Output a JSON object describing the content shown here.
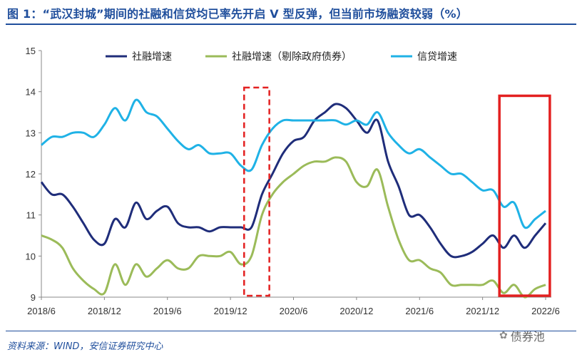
{
  "header": {
    "title": "图 1：“武汉封城”期间的社融和信贷均已率先开启 V 型反弹，但当前市场融资较弱（%）"
  },
  "footer": {
    "source": "资料来源：WIND，安信证券研究中心",
    "watermark": "债券池"
  },
  "colors": {
    "title": "#1f4e9c",
    "social": "#1f2d7a",
    "social_ex_gov": "#9bbb59",
    "credit": "#1fb2e6",
    "highlight_red": "#e32020"
  },
  "chart_data": {
    "type": "line",
    "xlabel": "",
    "ylabel": "",
    "ylim": [
      9,
      15
    ],
    "yticks": [
      "9",
      "10",
      "11",
      "12",
      "13",
      "14",
      "15"
    ],
    "xticks": [
      {
        "label": "2018/6",
        "i": 0
      },
      {
        "label": "2018/12",
        "i": 6
      },
      {
        "label": "2019/6",
        "i": 12
      },
      {
        "label": "2019/12",
        "i": 18
      },
      {
        "label": "2020/6",
        "i": 24
      },
      {
        "label": "2020/12",
        "i": 30
      },
      {
        "label": "2021/6",
        "i": 36
      },
      {
        "label": "2021/12",
        "i": 42
      },
      {
        "label": "2022/6",
        "i": 48
      }
    ],
    "legend": [
      "社融增速",
      "社融增速（剔除政府债券）",
      "信贷增速"
    ],
    "legend_position": "top",
    "x": [
      "2018/6",
      "2018/7",
      "2018/8",
      "2018/9",
      "2018/10",
      "2018/11",
      "2018/12",
      "2019/1",
      "2019/2",
      "2019/3",
      "2019/4",
      "2019/5",
      "2019/6",
      "2019/7",
      "2019/8",
      "2019/9",
      "2019/10",
      "2019/11",
      "2019/12",
      "2020/1",
      "2020/2",
      "2020/3",
      "2020/4",
      "2020/5",
      "2020/6",
      "2020/7",
      "2020/8",
      "2020/9",
      "2020/10",
      "2020/11",
      "2020/12",
      "2021/1",
      "2021/2",
      "2021/3",
      "2021/4",
      "2021/5",
      "2021/6",
      "2021/7",
      "2021/8",
      "2021/9",
      "2021/10",
      "2021/11",
      "2021/12",
      "2022/1",
      "2022/2",
      "2022/3",
      "2022/4",
      "2022/5",
      "2022/6"
    ],
    "series": [
      {
        "name": "社融增速",
        "values": [
          11.8,
          11.5,
          11.5,
          11.2,
          10.8,
          10.4,
          10.3,
          10.9,
          10.7,
          11.3,
          10.9,
          11.1,
          11.2,
          10.8,
          10.7,
          10.7,
          10.6,
          10.7,
          10.7,
          10.7,
          10.7,
          11.5,
          12.0,
          12.5,
          12.8,
          12.9,
          13.3,
          13.5,
          13.7,
          13.6,
          13.3,
          13.0,
          13.3,
          12.3,
          11.7,
          11.0,
          11.0,
          10.7,
          10.3,
          10.0,
          10.0,
          10.1,
          10.3,
          10.5,
          10.2,
          10.5,
          10.2,
          10.5,
          10.8
        ]
      },
      {
        "name": "社融增速（剔除政府债券）",
        "values": [
          10.5,
          10.4,
          10.2,
          9.7,
          9.4,
          9.2,
          9.1,
          9.8,
          9.3,
          9.8,
          9.5,
          9.7,
          9.9,
          9.7,
          9.7,
          10.0,
          10.0,
          10.0,
          10.1,
          9.8,
          10.0,
          11.0,
          11.5,
          11.8,
          12.0,
          12.2,
          12.3,
          12.3,
          12.4,
          12.3,
          11.8,
          11.7,
          12.1,
          11.2,
          10.4,
          9.9,
          9.9,
          9.7,
          9.6,
          9.3,
          9.3,
          9.3,
          9.3,
          9.4,
          9.1,
          9.3,
          9.0,
          9.2,
          9.3
        ]
      },
      {
        "name": "信贷增速",
        "values": [
          12.7,
          12.9,
          12.9,
          13.0,
          13.0,
          12.9,
          13.2,
          13.6,
          13.3,
          13.8,
          13.5,
          13.4,
          13.1,
          12.8,
          12.6,
          12.7,
          12.5,
          12.5,
          12.5,
          12.2,
          12.1,
          12.7,
          13.1,
          13.3,
          13.3,
          13.3,
          13.3,
          13.3,
          13.3,
          13.2,
          13.3,
          13.2,
          13.5,
          13.0,
          12.7,
          12.5,
          12.6,
          12.4,
          12.2,
          12.0,
          12.0,
          11.8,
          11.6,
          11.6,
          11.2,
          11.3,
          10.7,
          10.9,
          11.1
        ]
      }
    ],
    "highlights": [
      {
        "style": "dashed",
        "from_index": 19.3,
        "to_index": 21.7,
        "y_from": 9,
        "y_to": 14.1
      },
      {
        "style": "solid",
        "from_index": 43.6,
        "to_index": 48.4,
        "y_from": 9,
        "y_to": 13.9
      }
    ]
  }
}
